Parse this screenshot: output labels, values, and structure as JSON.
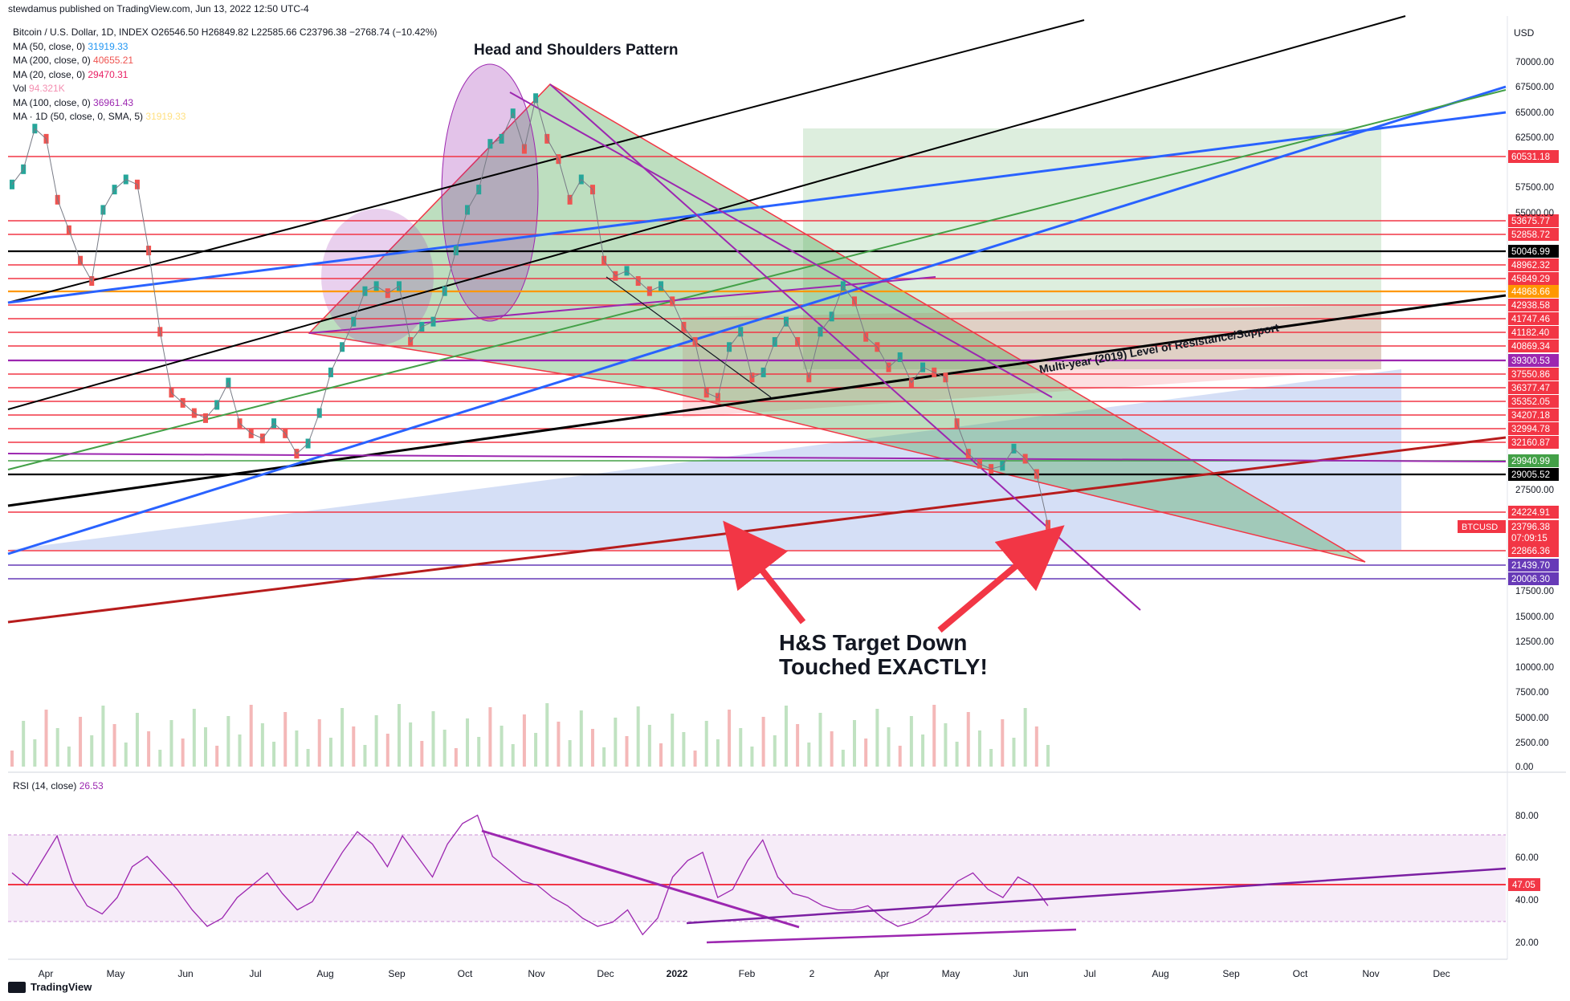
{
  "header": {
    "published": "stewdamus published on TradingView.com, Jun 13, 2022 12:50 UTC-4",
    "symbol": "Bitcoin / U.S. Dollar, 1D, INDEX",
    "ohlc": "O26546.50 H26849.82 L22585.66 C23796.38 −2768.74 (−10.42%)"
  },
  "indicators": [
    {
      "label": "MA (50, close, 0)",
      "value": "31919.33",
      "color": "#2196f3"
    },
    {
      "label": "MA (200, close, 0)",
      "value": "40655.21",
      "color": "#ef5350"
    },
    {
      "label": "MA (20, close, 0)",
      "value": "29470.31",
      "color": "#e91e63"
    },
    {
      "label": "Vol",
      "value": "94.321K",
      "color": "#f48fb1"
    },
    {
      "label": "MA (100, close, 0)",
      "value": "36961.43",
      "color": "#9c27b0"
    },
    {
      "label": "MA · 1D (50, close, 0, SMA, 5)",
      "value": "31919.33",
      "color": "#ffe082"
    }
  ],
  "currency": "USD",
  "annotations": {
    "title": "Head and Shoulders Pattern",
    "target_line1": "H&S Target Down",
    "target_line2": "Touched EXACTLY!",
    "multi_year": "Multi-year (2019) Level of Resistance/Support"
  },
  "rsi": {
    "label": "RSI (14, close)",
    "value": "26.53",
    "line_value": "47.05"
  },
  "footer": {
    "brand": "TradingView"
  },
  "chart_data": {
    "type": "line",
    "price_axis": {
      "ylim": [
        0,
        72500
      ],
      "ticks": [
        "70000.00",
        "67500.00",
        "65000.00",
        "62500.00",
        "57500.00",
        "55000.00",
        "27500.00",
        "17500.00",
        "15000.00",
        "12500.00",
        "10000.00",
        "7500.00",
        "5000.00",
        "2500.00",
        "0.00"
      ]
    },
    "price_levels": [
      {
        "label": "60531.18",
        "color": "#f23645"
      },
      {
        "label": "53675.77",
        "color": "#f23645"
      },
      {
        "label": "52858.72",
        "color": "#f23645"
      },
      {
        "label": "50046.99",
        "color": "#000000"
      },
      {
        "label": "48962.32",
        "color": "#f23645"
      },
      {
        "label": "45849.29",
        "color": "#f23645"
      },
      {
        "label": "44868.66",
        "color": "#ff9800"
      },
      {
        "label": "42938.58",
        "color": "#f23645"
      },
      {
        "label": "41747.46",
        "color": "#f23645"
      },
      {
        "label": "41182.40",
        "color": "#f23645"
      },
      {
        "label": "40869.34",
        "color": "#f23645"
      },
      {
        "label": "39300.53",
        "color": "#9c27b0"
      },
      {
        "label": "37550.86",
        "color": "#f23645"
      },
      {
        "label": "36377.47",
        "color": "#f23645"
      },
      {
        "label": "35352.05",
        "color": "#f23645"
      },
      {
        "label": "34207.18",
        "color": "#f23645"
      },
      {
        "label": "32994.78",
        "color": "#f23645"
      },
      {
        "label": "32160.87",
        "color": "#f23645"
      },
      {
        "label": "29940.99",
        "color": "#43a047"
      },
      {
        "label": "29005.52",
        "color": "#000000"
      },
      {
        "label": "24224.91",
        "color": "#f23645"
      },
      {
        "label": "23796.38",
        "color": "#f23645"
      },
      {
        "label": "07:09:15",
        "color": "#f23645"
      },
      {
        "label": "22866.36",
        "color": "#f23645"
      },
      {
        "label": "21439.70",
        "color": "#673ab7"
      },
      {
        "label": "20006.30",
        "color": "#673ab7"
      }
    ],
    "last_price_tag": "BTCUSD",
    "x_ticks": [
      "Apr",
      "May",
      "Jun",
      "Jul",
      "Aug",
      "Sep",
      "Oct",
      "Nov",
      "Dec",
      "2022",
      "Feb",
      "2",
      "Apr",
      "May",
      "Jun",
      "Jul",
      "Aug",
      "Sep",
      "Oct",
      "Nov",
      "Dec"
    ],
    "close_series": [
      57500,
      59000,
      63000,
      62000,
      56000,
      53000,
      50000,
      48000,
      55000,
      57000,
      58000,
      57500,
      51000,
      43000,
      37000,
      36000,
      35000,
      34500,
      35800,
      38000,
      34000,
      33000,
      32500,
      34000,
      33000,
      31000,
      32000,
      35000,
      39000,
      41500,
      44000,
      47000,
      47500,
      46800,
      47500,
      42000,
      43500,
      44000,
      47000,
      51000,
      55000,
      57000,
      61500,
      62000,
      64500,
      61000,
      66000,
      62000,
      60000,
      56000,
      58000,
      57000,
      50000,
      48500,
      49000,
      48000,
      47000,
      47500,
      46000,
      43500,
      42000,
      37000,
      36500,
      41500,
      43000,
      38500,
      39000,
      42000,
      44000,
      42000,
      38500,
      43000,
      44500,
      47500,
      46000,
      42500,
      41500,
      39500,
      40500,
      38000,
      39500,
      39000,
      38500,
      34000,
      31000,
      30000,
      29500,
      29800,
      31500,
      30500,
      29000,
      24000
    ],
    "rsi_series": [
      52,
      46,
      58,
      70,
      48,
      36,
      32,
      40,
      55,
      60,
      52,
      44,
      34,
      26,
      30,
      40,
      46,
      52,
      42,
      34,
      38,
      50,
      62,
      72,
      66,
      55,
      70,
      60,
      50,
      66,
      76,
      80,
      60,
      54,
      48,
      46,
      40,
      36,
      30,
      26,
      28,
      34,
      22,
      30,
      50,
      58,
      62,
      40,
      44,
      58,
      68,
      50,
      42,
      40,
      36,
      34,
      34,
      36,
      30,
      26,
      28,
      32,
      40,
      48,
      52,
      44,
      40,
      50,
      46,
      36
    ],
    "rsi_ylim": [
      10,
      90
    ],
    "rsi_ticks": [
      "80.00",
      "60.00",
      "40.00",
      "20.00"
    ]
  }
}
